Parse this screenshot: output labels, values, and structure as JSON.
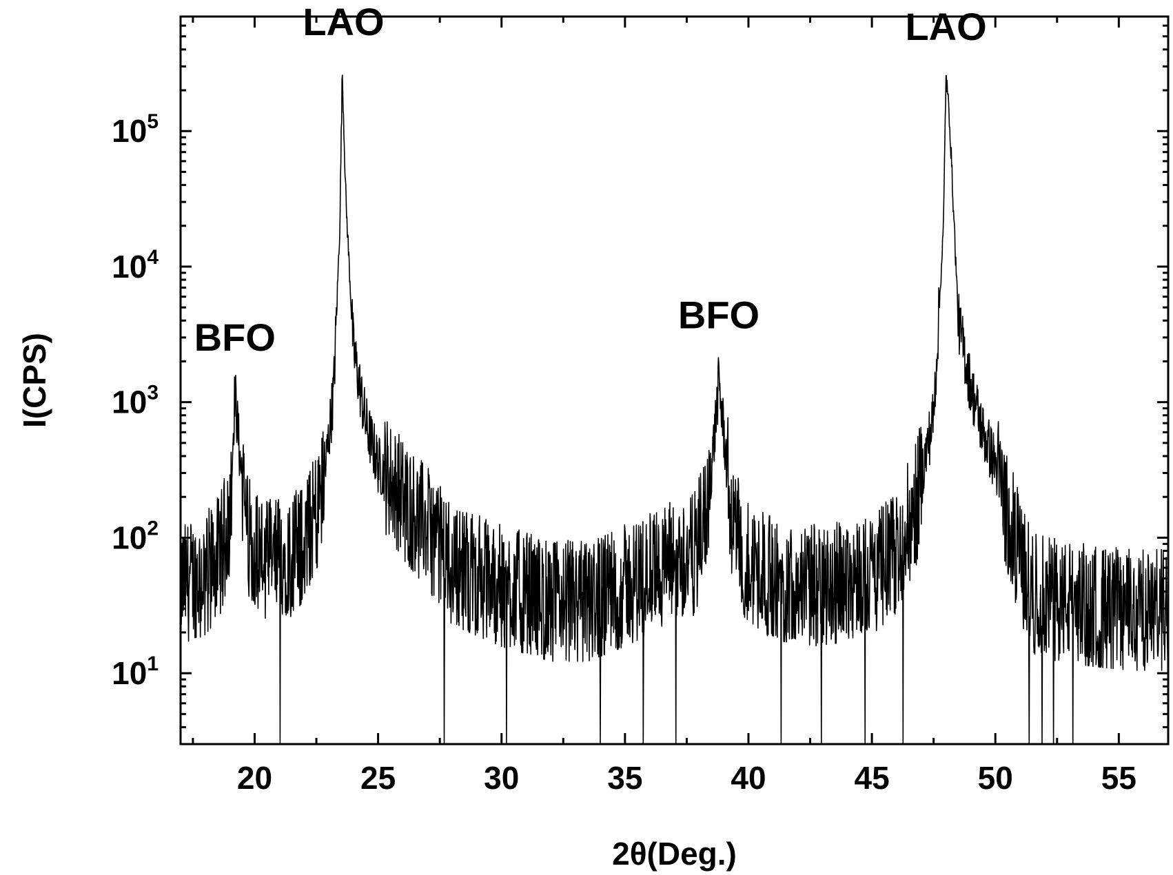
{
  "chart_data": {
    "type": "line",
    "title": "",
    "xlabel": "2θ(Deg.)",
    "ylabel": "I(CPS)",
    "xlim": [
      17,
      57
    ],
    "ylim": [
      3,
      700000
    ],
    "yscale": "log",
    "grid": false,
    "legend": "none",
    "x_ticks": [
      20,
      25,
      30,
      35,
      40,
      45,
      50,
      55
    ],
    "y_ticks": [
      {
        "value": 10,
        "base": "10",
        "exp": "1"
      },
      {
        "value": 100,
        "base": "10",
        "exp": "2"
      },
      {
        "value": 1000,
        "base": "10",
        "exp": "3"
      },
      {
        "value": 10000,
        "base": "10",
        "exp": "4"
      },
      {
        "value": 100000,
        "base": "10",
        "exp": "5"
      }
    ],
    "series": [
      {
        "color": "#000000",
        "baseline": [
          [
            17.0,
            45
          ],
          [
            18.0,
            55
          ],
          [
            18.6,
            75
          ],
          [
            19.0,
            150
          ],
          [
            19.2,
            1200
          ],
          [
            19.4,
            400
          ],
          [
            19.7,
            110
          ],
          [
            20.5,
            70
          ],
          [
            21.5,
            75
          ],
          [
            22.2,
            110
          ],
          [
            22.8,
            250
          ],
          [
            23.2,
            1200
          ],
          [
            23.45,
            20000
          ],
          [
            23.55,
            280000
          ],
          [
            23.7,
            30000
          ],
          [
            24.0,
            2500
          ],
          [
            24.5,
            700
          ],
          [
            25.0,
            350
          ],
          [
            26.0,
            200
          ],
          [
            27.0,
            120
          ],
          [
            28.0,
            65
          ],
          [
            30.0,
            45
          ],
          [
            32.0,
            35
          ],
          [
            33.5,
            35
          ],
          [
            35.0,
            45
          ],
          [
            36.5,
            62
          ],
          [
            37.8,
            75
          ],
          [
            38.3,
            150
          ],
          [
            38.6,
            500
          ],
          [
            38.8,
            1400
          ],
          [
            39.0,
            600
          ],
          [
            39.3,
            150
          ],
          [
            39.8,
            75
          ],
          [
            41.0,
            50
          ],
          [
            43.0,
            45
          ],
          [
            45.0,
            55
          ],
          [
            46.0,
            80
          ],
          [
            46.8,
            180
          ],
          [
            47.5,
            800
          ],
          [
            47.9,
            20000
          ],
          [
            48.0,
            260000
          ],
          [
            48.15,
            120000
          ],
          [
            48.5,
            4000
          ],
          [
            49.0,
            1300
          ],
          [
            49.5,
            600
          ],
          [
            50.0,
            350
          ],
          [
            50.5,
            160
          ],
          [
            51.0,
            70
          ],
          [
            51.5,
            40
          ],
          [
            52.5,
            35
          ],
          [
            54.0,
            32
          ],
          [
            55.5,
            30
          ],
          [
            57.0,
            30
          ]
        ]
      }
    ],
    "annotations": [
      {
        "text": "BFO",
        "x": 19.2,
        "y": 2400
      },
      {
        "text": "LAO",
        "x": 23.6,
        "y": 510000
      },
      {
        "text": "BFO",
        "x": 38.8,
        "y": 3500
      },
      {
        "text": "LAO",
        "x": 48.0,
        "y": 470000
      }
    ]
  }
}
